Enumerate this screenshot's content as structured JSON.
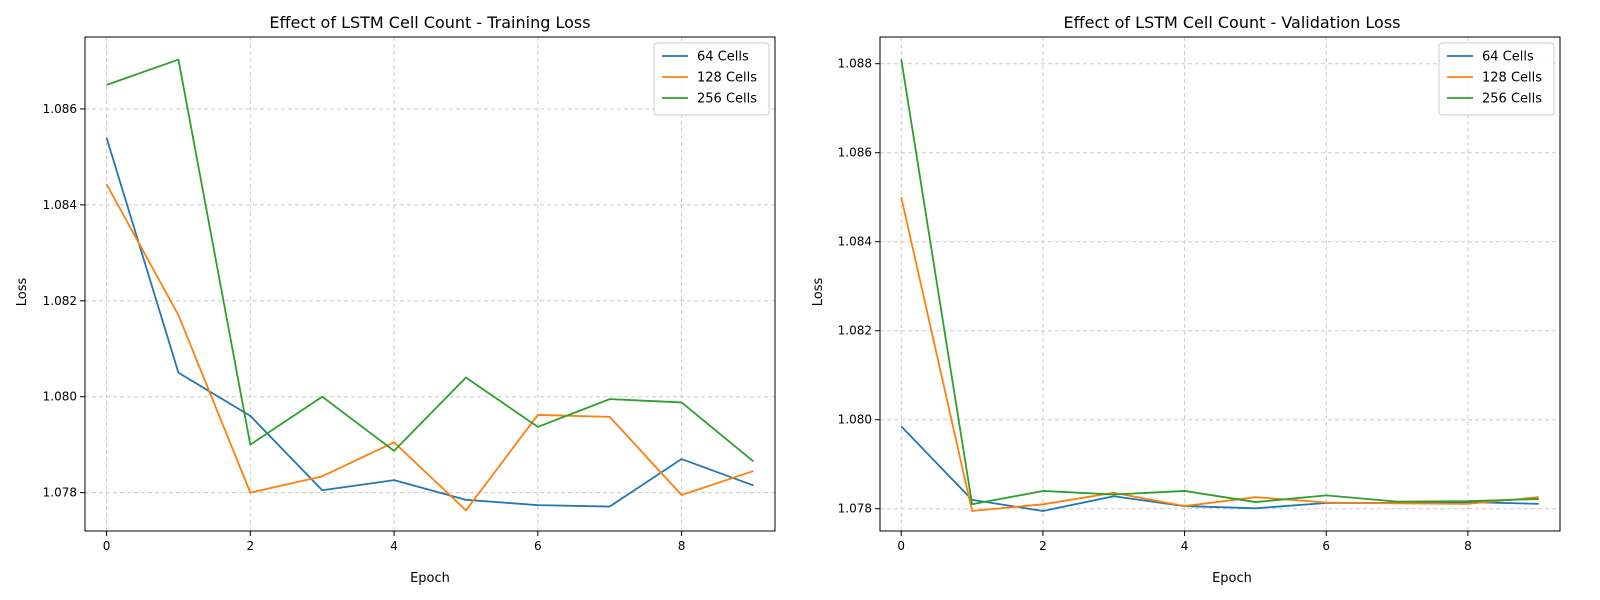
{
  "colors": {
    "s64": "#1f77b4",
    "s128": "#ff7f0e",
    "s256": "#2ca02c",
    "grid": "#cccccc",
    "axis": "#000000"
  },
  "chart_data": [
    {
      "type": "line",
      "title": "Effect of LSTM Cell Count - Training Loss",
      "xlabel": "Epoch",
      "ylabel": "Loss",
      "xlim": [
        -0.3,
        9.3
      ],
      "ylim": [
        1.0772,
        1.0875
      ],
      "xticks": [
        0,
        2,
        4,
        6,
        8
      ],
      "yticks": [
        1.078,
        1.08,
        1.082,
        1.084,
        1.086
      ],
      "ytick_labels": [
        "1.078",
        "1.080",
        "1.082",
        "1.084",
        "1.086"
      ],
      "grid": true,
      "legend_position": "top-right",
      "x": [
        0,
        1,
        2,
        3,
        4,
        5,
        6,
        7,
        8,
        9
      ],
      "series": [
        {
          "name": "64 Cells",
          "color": "#1f77b4",
          "values": [
            1.0854,
            1.0805,
            1.0796,
            1.07805,
            1.07826,
            1.07785,
            1.07774,
            1.07771,
            1.0787,
            1.07815
          ]
        },
        {
          "name": "128 Cells",
          "color": "#ff7f0e",
          "values": [
            1.08443,
            1.0817,
            1.078,
            1.07834,
            1.07905,
            1.07763,
            1.07962,
            1.07958,
            1.07795,
            1.07845
          ]
        },
        {
          "name": "256 Cells",
          "color": "#2ca02c",
          "values": [
            1.0865,
            1.08703,
            1.079,
            1.08,
            1.07887,
            1.0804,
            1.07937,
            1.07995,
            1.07988,
            1.07865
          ]
        }
      ]
    },
    {
      "type": "line",
      "title": "Effect of LSTM Cell Count - Validation Loss",
      "xlabel": "Epoch",
      "ylabel": "Loss",
      "xlim": [
        -0.3,
        9.3
      ],
      "ylim": [
        1.0775,
        1.0886
      ],
      "xticks": [
        0,
        2,
        4,
        6,
        8
      ],
      "yticks": [
        1.078,
        1.08,
        1.082,
        1.084,
        1.086,
        1.088
      ],
      "ytick_labels": [
        "1.078",
        "1.080",
        "1.082",
        "1.084",
        "1.086",
        "1.088"
      ],
      "grid": true,
      "legend_position": "top-right",
      "x": [
        0,
        1,
        2,
        3,
        4,
        5,
        6,
        7,
        8,
        9
      ],
      "series": [
        {
          "name": "64 Cells",
          "color": "#1f77b4",
          "values": [
            1.07985,
            1.0782,
            1.07795,
            1.07828,
            1.07806,
            1.07801,
            1.07813,
            1.07813,
            1.07815,
            1.07811
          ]
        },
        {
          "name": "128 Cells",
          "color": "#ff7f0e",
          "values": [
            1.085,
            1.07795,
            1.0781,
            1.07836,
            1.07806,
            1.07826,
            1.07814,
            1.07812,
            1.07811,
            1.07826
          ]
        },
        {
          "name": "256 Cells",
          "color": "#2ca02c",
          "values": [
            1.0881,
            1.0781,
            1.0784,
            1.07832,
            1.0784,
            1.07815,
            1.0783,
            1.07816,
            1.07817,
            1.07822
          ]
        }
      ]
    }
  ]
}
